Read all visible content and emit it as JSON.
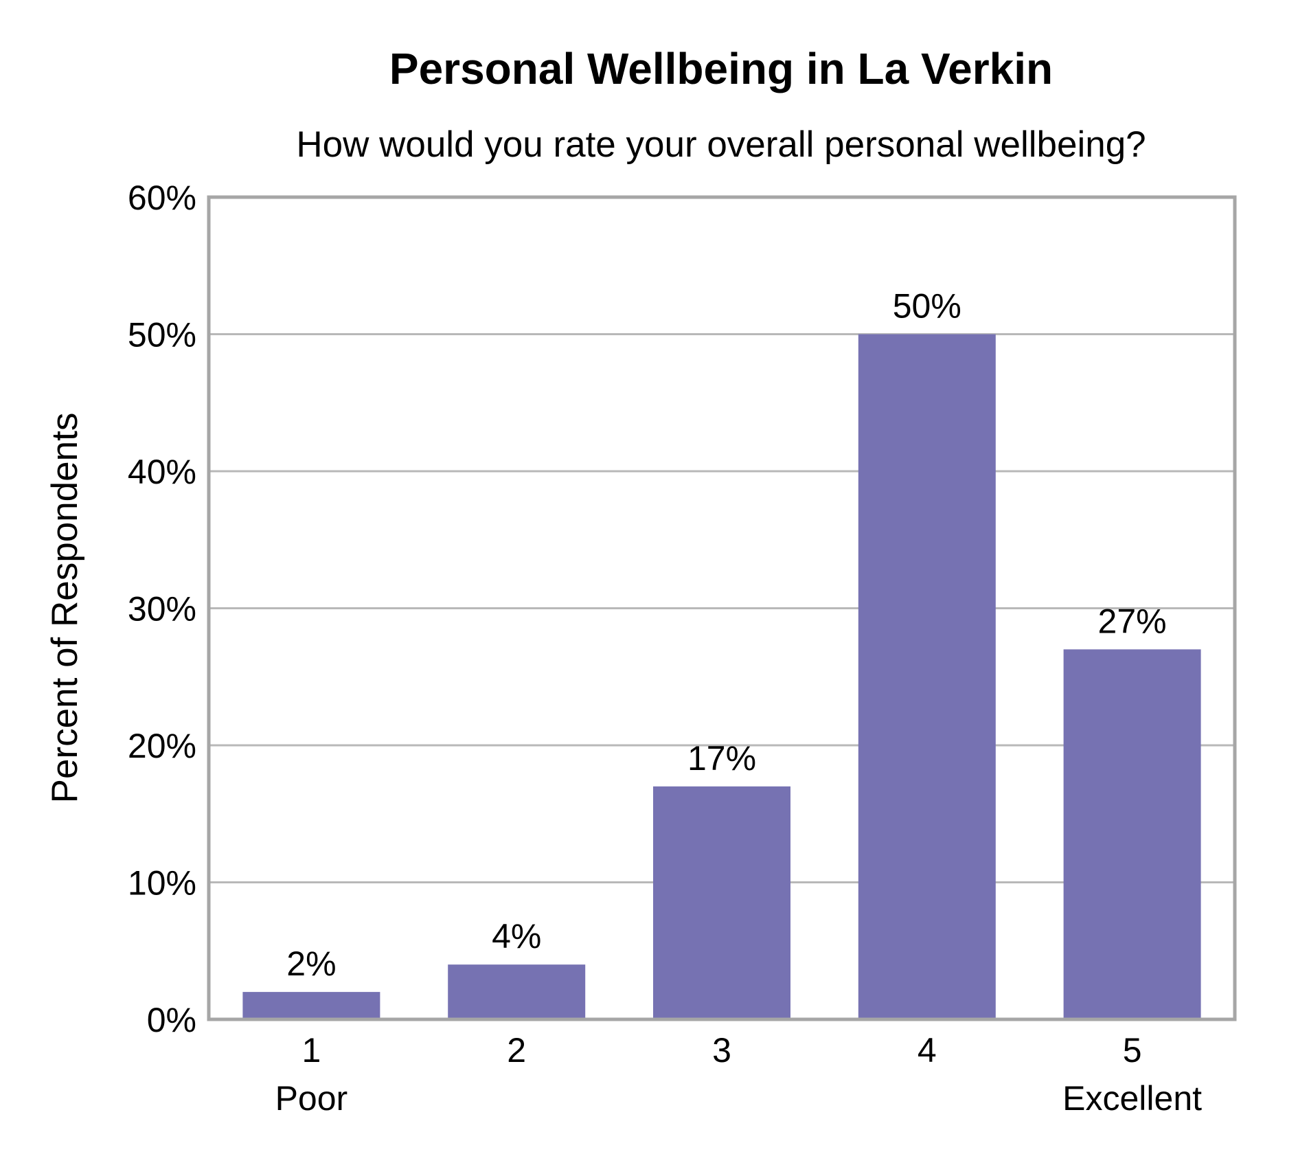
{
  "chart_data": {
    "type": "bar",
    "title": "Personal Wellbeing in La Verkin",
    "subtitle": "How would you rate your overall personal wellbeing?",
    "ylabel": "Percent of Respondents",
    "xlabel": "",
    "categories": [
      "1",
      "2",
      "3",
      "4",
      "5"
    ],
    "category_sublabels": [
      "Poor",
      "",
      "",
      "",
      "Excellent"
    ],
    "values": [
      2,
      4,
      17,
      50,
      27
    ],
    "value_labels": [
      "2%",
      "4%",
      "17%",
      "50%",
      "27%"
    ],
    "ylim": [
      0,
      60
    ],
    "yticks": [
      0,
      10,
      20,
      30,
      40,
      50,
      60
    ],
    "ytick_labels": [
      "0%",
      "10%",
      "20%",
      "30%",
      "40%",
      "50%",
      "60%"
    ],
    "grid": true,
    "legend": "none",
    "bar_color": "#7672b2",
    "grid_color": "#b8b8b8",
    "axis_color": "#a6a6a6"
  }
}
